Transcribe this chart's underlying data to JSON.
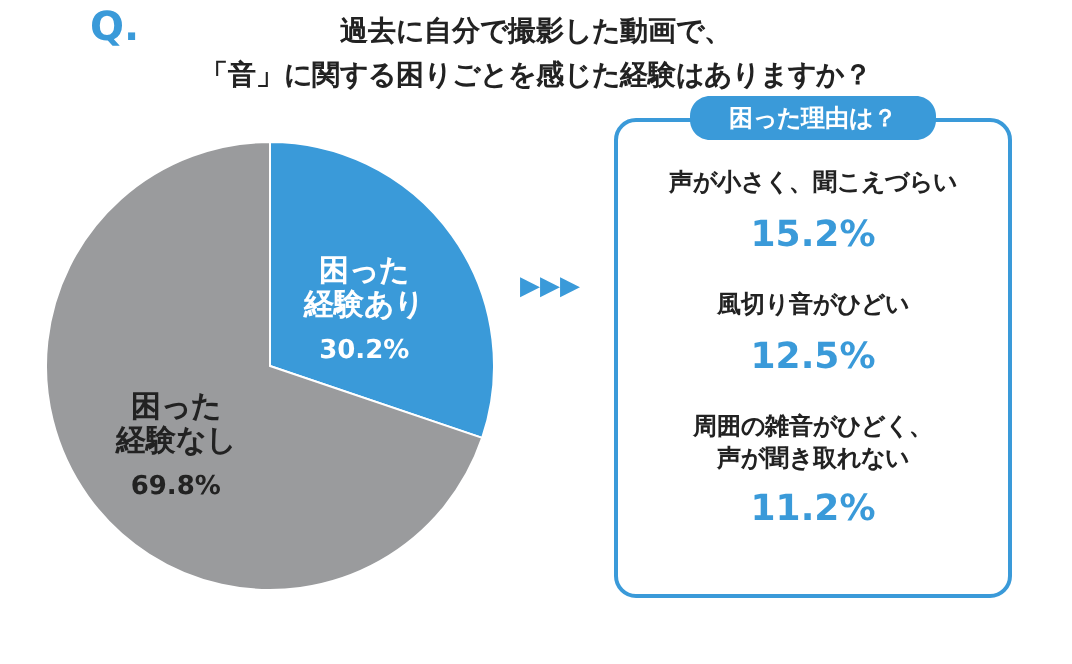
{
  "chart_data": [
    {
      "type": "pie",
      "title": "過去に自分で撮影した動画で、「音」に関する困りごとを感じた経験はありますか？",
      "categories": [
        "困った経験あり",
        "困った経験なし"
      ],
      "values": [
        30.2,
        69.8
      ],
      "value_labels": [
        "30.2%",
        "69.8%"
      ],
      "colors": [
        "#3a9ad9",
        "#9a9b9d"
      ],
      "annotations": [
        "Q.",
        "▶▶▶"
      ]
    },
    {
      "type": "other",
      "title": "困った理由は？",
      "color": "#3a9ad9",
      "categories": [
        "声が小さく、聞こえづらい",
        "風切り音がひどい",
        "周囲の雑音がひどく、声が聞き取れない"
      ],
      "value_labels": [
        "15.2%",
        "12.5%",
        "11.2%"
      ]
    }
  ]
}
